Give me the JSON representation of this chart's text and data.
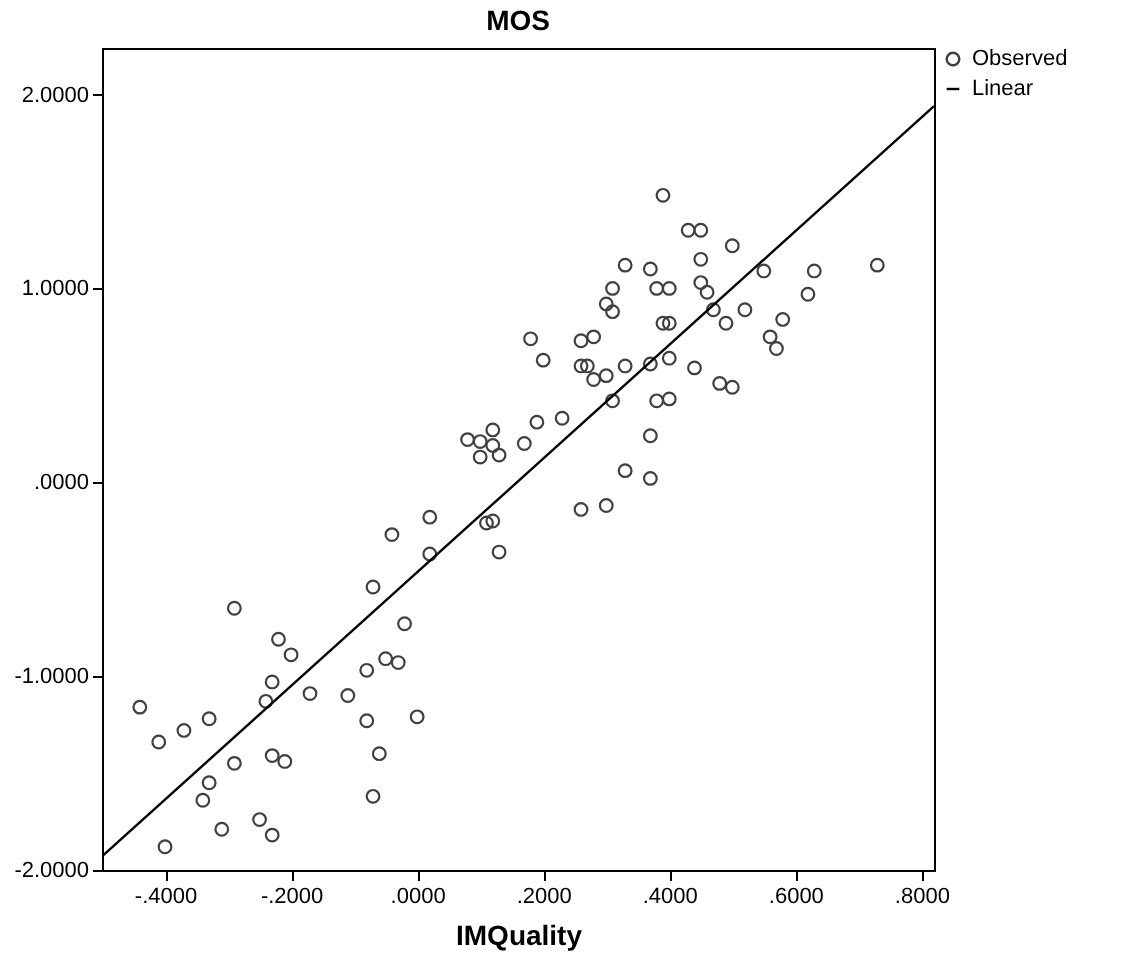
{
  "chart_data": {
    "type": "scatter",
    "title": "MOS",
    "xlabel": "IMQuality",
    "xlim": [
      -0.5,
      0.82
    ],
    "ylim": [
      -2,
      2.24
    ],
    "xticks": [
      {
        "value": -0.4,
        "label": "-.4000"
      },
      {
        "value": -0.2,
        "label": "-.2000"
      },
      {
        "value": 0,
        "label": ".0000"
      },
      {
        "value": 0.2,
        "label": ".2000"
      },
      {
        "value": 0.4,
        "label": ".4000"
      },
      {
        "value": 0.6,
        "label": ".6000"
      },
      {
        "value": 0.8,
        "label": ".8000"
      }
    ],
    "yticks": [
      {
        "value": -2,
        "label": "-2.0000"
      },
      {
        "value": -1,
        "label": "-1.0000"
      },
      {
        "value": 0,
        "label": ".0000"
      },
      {
        "value": 1,
        "label": "1.0000"
      },
      {
        "value": 2,
        "label": "2.0000"
      }
    ],
    "grid": false,
    "legend": "top right",
    "series": [
      {
        "name": "Observed",
        "marker": "circle",
        "color": "#404040",
        "x": [
          -0.44,
          -0.41,
          -0.37,
          -0.4,
          -0.34,
          -0.33,
          -0.31,
          -0.33,
          -0.29,
          -0.29,
          -0.25,
          -0.23,
          -0.24,
          -0.23,
          -0.23,
          -0.21,
          -0.22,
          -0.2,
          -0.17,
          -0.11,
          -0.08,
          -0.08,
          -0.07,
          -0.07,
          -0.06,
          -0.05,
          -0.03,
          -0.02,
          0.0,
          -0.04,
          0.02,
          0.02,
          0.11,
          0.12,
          0.13,
          0.08,
          0.1,
          0.12,
          0.12,
          0.1,
          0.13,
          0.17,
          0.19,
          0.23,
          0.18,
          0.2,
          0.26,
          0.28,
          0.26,
          0.27,
          0.28,
          0.3,
          0.33,
          0.3,
          0.31,
          0.31,
          0.33,
          0.37,
          0.38,
          0.4,
          0.39,
          0.43,
          0.45,
          0.45,
          0.5,
          0.45,
          0.46,
          0.39,
          0.4,
          0.37,
          0.31,
          0.4,
          0.44,
          0.47,
          0.49,
          0.48,
          0.5,
          0.38,
          0.4,
          0.37,
          0.33,
          0.37,
          0.26,
          0.3,
          0.52,
          0.55,
          0.63,
          0.62,
          0.73,
          0.58,
          0.56,
          0.57
        ],
        "values": [
          -1.16,
          -1.34,
          -1.28,
          -1.88,
          -1.64,
          -1.55,
          -1.79,
          -1.22,
          -0.65,
          -1.45,
          -1.74,
          -1.82,
          -1.13,
          -1.03,
          -1.41,
          -1.44,
          -0.81,
          -0.89,
          -1.09,
          -1.1,
          -0.97,
          -1.23,
          -1.62,
          -0.54,
          -1.4,
          -0.91,
          -0.93,
          -0.73,
          -1.21,
          -0.27,
          -0.18,
          -0.37,
          -0.21,
          -0.2,
          -0.36,
          0.22,
          0.21,
          0.27,
          0.19,
          0.13,
          0.14,
          0.2,
          0.31,
          0.33,
          0.74,
          0.63,
          0.73,
          0.75,
          0.6,
          0.6,
          0.53,
          0.55,
          0.6,
          0.92,
          0.88,
          1.0,
          1.12,
          1.1,
          1.0,
          1.0,
          1.48,
          1.3,
          1.3,
          1.15,
          1.22,
          1.03,
          0.98,
          0.82,
          0.82,
          0.61,
          0.42,
          0.64,
          0.59,
          0.89,
          0.82,
          0.51,
          0.49,
          0.42,
          0.43,
          0.24,
          0.06,
          0.02,
          -0.14,
          -0.12,
          0.89,
          1.09,
          1.09,
          0.97,
          1.12,
          0.84,
          0.75,
          0.69
        ]
      },
      {
        "name": "Linear",
        "type": "line",
        "marker": "none",
        "color": "#000000",
        "x": [
          -0.5,
          0.82
        ],
        "values": [
          -1.93,
          1.94
        ]
      }
    ]
  }
}
